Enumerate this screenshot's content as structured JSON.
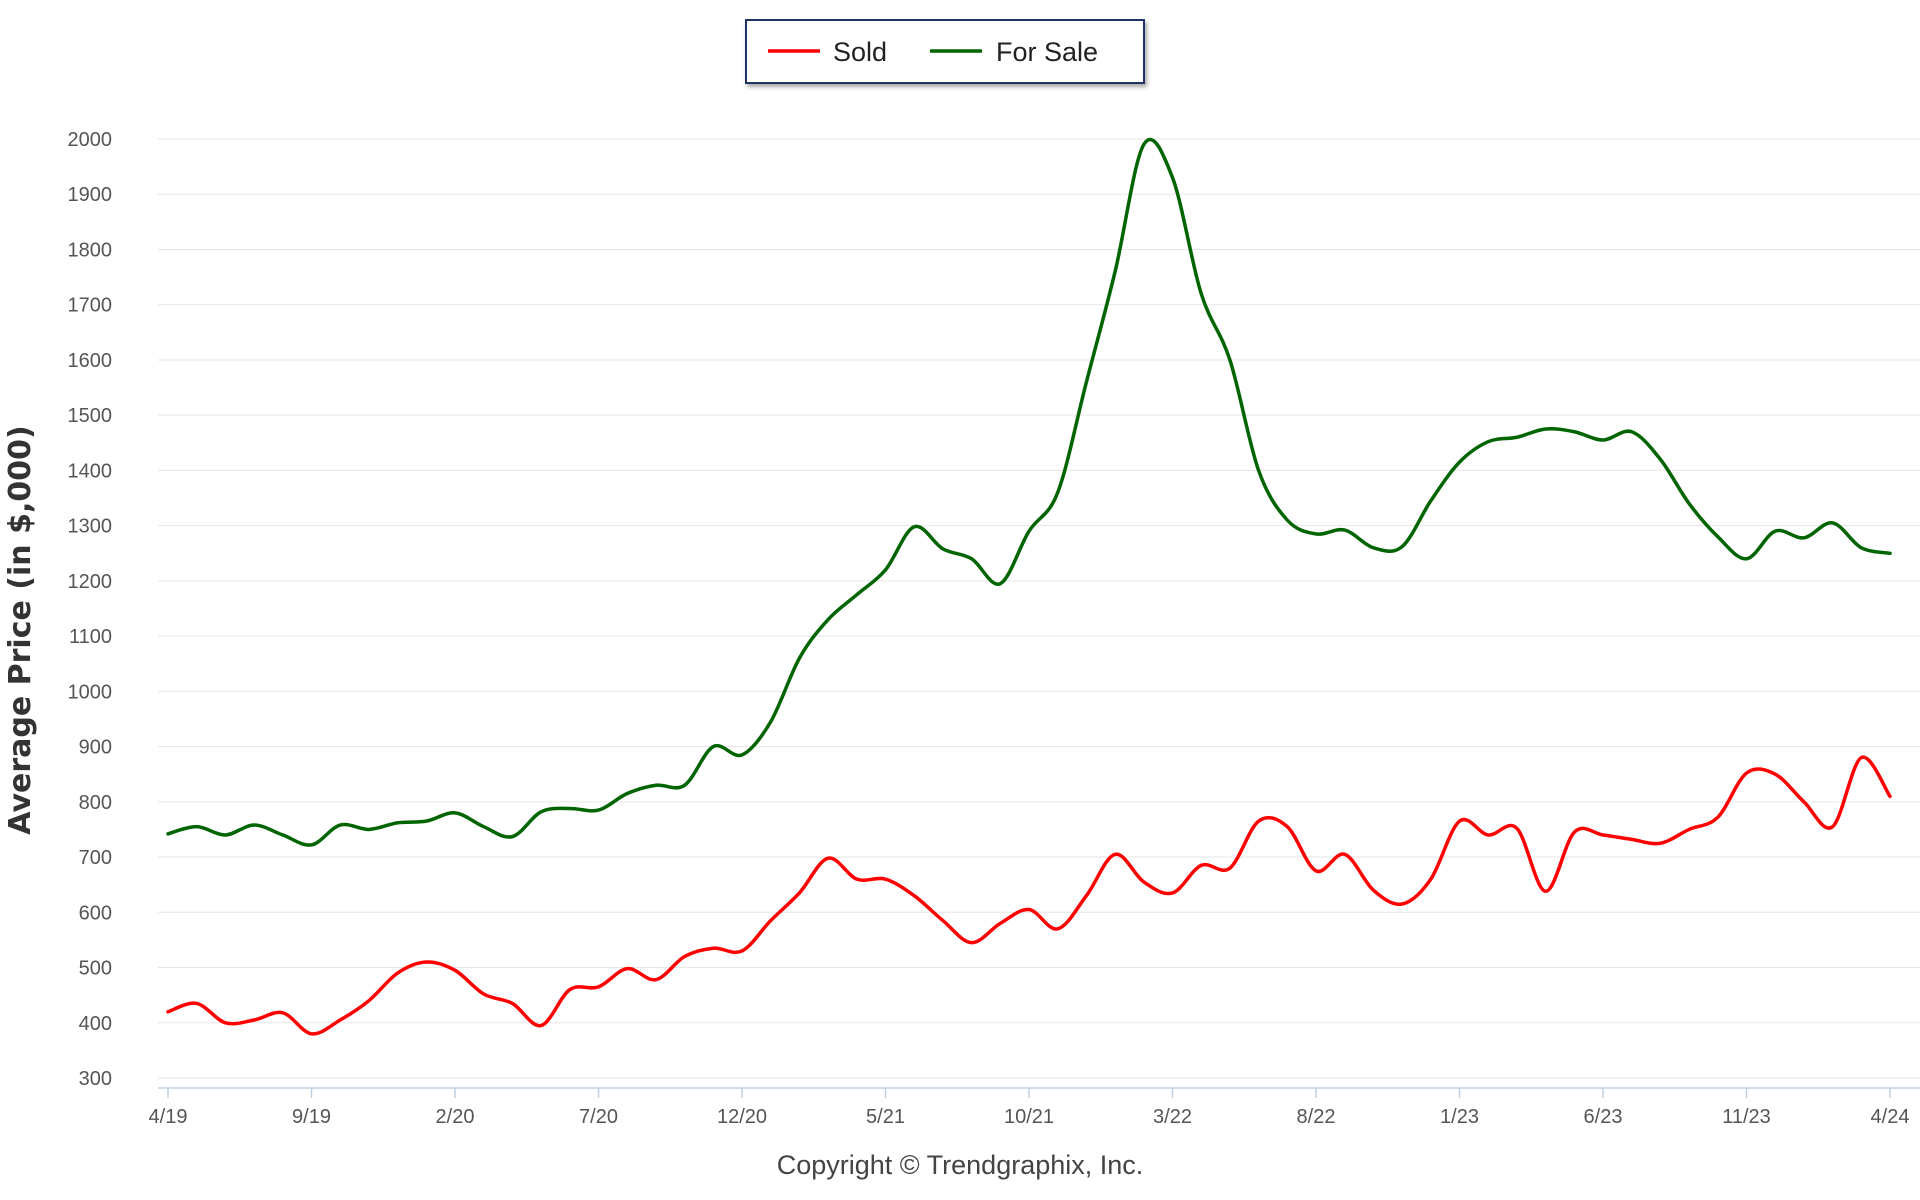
{
  "chart_data": {
    "type": "line",
    "title": "",
    "xlabel": "",
    "ylabel": "Average Price (in $,000)",
    "ylim": [
      300,
      2000
    ],
    "yticks": [
      "2000",
      "1900",
      "1800",
      "1700",
      "1600",
      "1500",
      "1400",
      "1300",
      "1200",
      "1100",
      "1000",
      "900",
      "800",
      "700",
      "600",
      "500",
      "400",
      "300"
    ],
    "xticks": [
      "4/19",
      "9/19",
      "2/20",
      "7/20",
      "12/20",
      "5/21",
      "10/21",
      "3/22",
      "8/22",
      "1/23",
      "6/23",
      "11/23",
      "4/24"
    ],
    "grid": true,
    "legend_position": "top-center",
    "x": [
      "4/19",
      "5/19",
      "6/19",
      "7/19",
      "8/19",
      "9/19",
      "10/19",
      "11/19",
      "12/19",
      "1/20",
      "2/20",
      "3/20",
      "4/20",
      "5/20",
      "6/20",
      "7/20",
      "8/20",
      "9/20",
      "10/20",
      "11/20",
      "12/20",
      "1/21",
      "2/21",
      "3/21",
      "4/21",
      "5/21",
      "6/21",
      "7/21",
      "8/21",
      "9/21",
      "10/21",
      "11/21",
      "12/21",
      "1/22",
      "2/22",
      "3/22",
      "4/22",
      "5/22",
      "6/22",
      "7/22",
      "8/22",
      "9/22",
      "10/22",
      "11/22",
      "12/22",
      "1/23",
      "2/23",
      "3/23",
      "4/23",
      "5/23",
      "6/23",
      "7/23",
      "8/23",
      "9/23",
      "10/23",
      "11/23",
      "12/23",
      "1/24",
      "2/24",
      "3/24",
      "4/24"
    ],
    "series": [
      {
        "name": "Sold",
        "color": "#ff0000",
        "values": [
          420,
          435,
          400,
          405,
          418,
          380,
          405,
          440,
          490,
          510,
          495,
          452,
          435,
          395,
          460,
          465,
          498,
          478,
          520,
          535,
          530,
          585,
          635,
          698,
          660,
          660,
          630,
          585,
          545,
          580,
          605,
          570,
          630,
          705,
          655,
          635,
          685,
          680,
          765,
          755,
          675,
          705,
          640,
          615,
          660,
          765,
          740,
          752,
          638,
          745,
          740,
          732,
          725,
          750,
          772,
          852,
          850,
          800,
          755,
          880,
          810
        ],
        "role": "series"
      },
      {
        "name": "For Sale",
        "color": "#006400",
        "values": [
          742,
          755,
          740,
          758,
          740,
          722,
          758,
          750,
          762,
          765,
          780,
          755,
          737,
          782,
          788,
          785,
          815,
          830,
          830,
          900,
          885,
          945,
          1060,
          1130,
          1175,
          1220,
          1298,
          1258,
          1240,
          1195,
          1290,
          1360,
          1560,
          1760,
          1990,
          1930,
          1720,
          1600,
          1400,
          1310,
          1285,
          1292,
          1260,
          1262,
          1345,
          1415,
          1452,
          1460,
          1475,
          1470,
          1455,
          1470,
          1420,
          1340,
          1280,
          1240,
          1290,
          1278,
          1305,
          1260,
          1250
        ],
        "role": "series"
      }
    ]
  },
  "legend": {
    "items": [
      {
        "label": "Sold",
        "color": "#ff0000"
      },
      {
        "label": "For Sale",
        "color": "#006400"
      }
    ]
  },
  "footer": {
    "copyright": "Copyright © Trendgraphix, Inc."
  }
}
